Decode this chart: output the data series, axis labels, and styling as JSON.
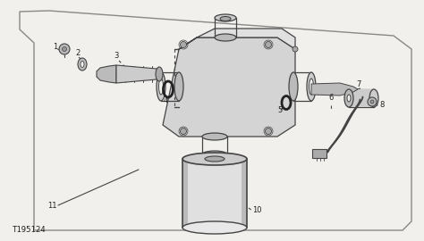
{
  "bg_color": "#f2f0ed",
  "line_color": "#444444",
  "dark_color": "#222222",
  "gray1": "#cccccc",
  "gray2": "#bbbbbb",
  "gray3": "#aaaaaa",
  "gray4": "#999999",
  "diagram_id": "T195124",
  "figsize": [
    4.74,
    2.7
  ],
  "dpi": 100
}
